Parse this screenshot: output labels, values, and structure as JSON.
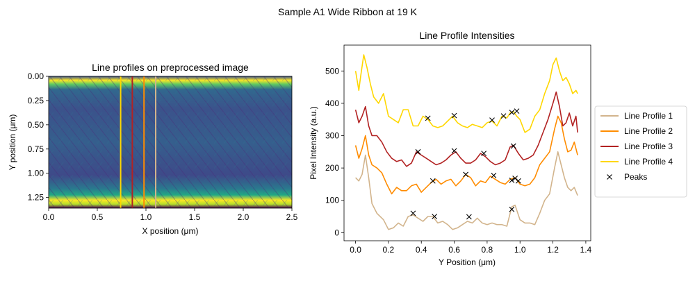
{
  "suptitle": "Sample A1 Wide Ribbon at 19 K",
  "colors": {
    "profile1": "#d2b48c",
    "profile2": "#ff8c00",
    "profile3": "#b22222",
    "profile4": "#ffd700",
    "peaks": "#000000",
    "viridis_dark": "#440154",
    "viridis_mid": "#21918c",
    "viridis_bright": "#fde725"
  },
  "chart_data": [
    {
      "type": "heatmap",
      "title": "Line profiles on preprocessed image",
      "xlabel": "X position (μm)",
      "ylabel": "Y position (μm)",
      "xlim": [
        0,
        2.5
      ],
      "ylim": [
        1.36,
        0
      ],
      "xticks": [
        "0.0",
        "0.5",
        "1.0",
        "1.5",
        "2.0",
        "2.5"
      ],
      "yticks": [
        "0.00",
        "0.25",
        "0.50",
        "0.75",
        "1.00",
        "1.25"
      ],
      "colormap": "viridis",
      "bright_bands": [
        {
          "y": 0.05,
          "description": "top edge"
        },
        {
          "y": 1.25,
          "description": "bottom edge"
        }
      ],
      "profile_lines": [
        {
          "name": "Line Profile 1",
          "x": 1.1,
          "color": "#d2b48c"
        },
        {
          "name": "Line Profile 2",
          "x": 0.98,
          "color": "#ff8c00"
        },
        {
          "name": "Line Profile 3",
          "x": 0.86,
          "color": "#b22222"
        },
        {
          "name": "Line Profile 4",
          "x": 0.74,
          "color": "#ffd700"
        }
      ]
    },
    {
      "type": "line",
      "title": "Line Profile Intensities",
      "xlabel": "Y Position (μm)",
      "ylabel": "Pixel Intensity (a.u.)",
      "xlim": [
        -0.07,
        1.43
      ],
      "ylim": [
        -25,
        580
      ],
      "xticks": [
        "0.0",
        "0.2",
        "0.4",
        "0.6",
        "0.8",
        "1.0",
        "1.2",
        "1.4"
      ],
      "yticks": [
        "0",
        "100",
        "200",
        "300",
        "400",
        "500"
      ],
      "legend_position": "right-outside",
      "series": [
        {
          "name": "Line Profile 1",
          "color": "#d2b48c",
          "points": [
            [
              0.0,
              170
            ],
            [
              0.02,
              160
            ],
            [
              0.04,
              180
            ],
            [
              0.06,
              240
            ],
            [
              0.08,
              170
            ],
            [
              0.1,
              90
            ],
            [
              0.13,
              60
            ],
            [
              0.17,
              40
            ],
            [
              0.2,
              10
            ],
            [
              0.23,
              15
            ],
            [
              0.26,
              30
            ],
            [
              0.29,
              20
            ],
            [
              0.32,
              50
            ],
            [
              0.35,
              55
            ],
            [
              0.38,
              45
            ],
            [
              0.41,
              35
            ],
            [
              0.44,
              50
            ],
            [
              0.47,
              50
            ],
            [
              0.5,
              30
            ],
            [
              0.53,
              35
            ],
            [
              0.56,
              25
            ],
            [
              0.59,
              10
            ],
            [
              0.62,
              15
            ],
            [
              0.65,
              25
            ],
            [
              0.68,
              35
            ],
            [
              0.71,
              30
            ],
            [
              0.74,
              45
            ],
            [
              0.77,
              30
            ],
            [
              0.8,
              25
            ],
            [
              0.83,
              30
            ],
            [
              0.86,
              25
            ],
            [
              0.89,
              25
            ],
            [
              0.92,
              20
            ],
            [
              0.95,
              80
            ],
            [
              0.97,
              85
            ],
            [
              1.0,
              40
            ],
            [
              1.03,
              30
            ],
            [
              1.06,
              30
            ],
            [
              1.09,
              25
            ],
            [
              1.12,
              60
            ],
            [
              1.15,
              100
            ],
            [
              1.18,
              120
            ],
            [
              1.21,
              200
            ],
            [
              1.23,
              250
            ],
            [
              1.25,
              210
            ],
            [
              1.27,
              170
            ],
            [
              1.29,
              140
            ],
            [
              1.31,
              130
            ],
            [
              1.33,
              140
            ],
            [
              1.35,
              115
            ]
          ]
        },
        {
          "name": "Line Profile 2",
          "color": "#ff8c00",
          "points": [
            [
              0.0,
              270
            ],
            [
              0.02,
              230
            ],
            [
              0.04,
              260
            ],
            [
              0.06,
              300
            ],
            [
              0.08,
              240
            ],
            [
              0.1,
              210
            ],
            [
              0.13,
              200
            ],
            [
              0.16,
              185
            ],
            [
              0.19,
              150
            ],
            [
              0.22,
              120
            ],
            [
              0.25,
              140
            ],
            [
              0.28,
              130
            ],
            [
              0.31,
              130
            ],
            [
              0.34,
              145
            ],
            [
              0.37,
              150
            ],
            [
              0.4,
              125
            ],
            [
              0.43,
              140
            ],
            [
              0.46,
              155
            ],
            [
              0.49,
              165
            ],
            [
              0.52,
              150
            ],
            [
              0.55,
              160
            ],
            [
              0.58,
              165
            ],
            [
              0.61,
              145
            ],
            [
              0.64,
              160
            ],
            [
              0.67,
              180
            ],
            [
              0.7,
              170
            ],
            [
              0.73,
              145
            ],
            [
              0.76,
              160
            ],
            [
              0.79,
              155
            ],
            [
              0.82,
              175
            ],
            [
              0.85,
              165
            ],
            [
              0.88,
              155
            ],
            [
              0.91,
              150
            ],
            [
              0.94,
              165
            ],
            [
              0.97,
              170
            ],
            [
              1.0,
              150
            ],
            [
              1.03,
              145
            ],
            [
              1.06,
              150
            ],
            [
              1.09,
              170
            ],
            [
              1.12,
              210
            ],
            [
              1.15,
              230
            ],
            [
              1.18,
              250
            ],
            [
              1.21,
              320
            ],
            [
              1.23,
              360
            ],
            [
              1.25,
              340
            ],
            [
              1.27,
              290
            ],
            [
              1.29,
              250
            ],
            [
              1.31,
              255
            ],
            [
              1.33,
              280
            ],
            [
              1.35,
              240
            ]
          ]
        },
        {
          "name": "Line Profile 3",
          "color": "#b22222",
          "points": [
            [
              0.0,
              380
            ],
            [
              0.02,
              340
            ],
            [
              0.04,
              360
            ],
            [
              0.06,
              390
            ],
            [
              0.08,
              330
            ],
            [
              0.1,
              300
            ],
            [
              0.13,
              300
            ],
            [
              0.16,
              280
            ],
            [
              0.19,
              250
            ],
            [
              0.22,
              230
            ],
            [
              0.25,
              220
            ],
            [
              0.28,
              225
            ],
            [
              0.31,
              205
            ],
            [
              0.34,
              215
            ],
            [
              0.37,
              250
            ],
            [
              0.4,
              240
            ],
            [
              0.43,
              230
            ],
            [
              0.46,
              220
            ],
            [
              0.49,
              210
            ],
            [
              0.52,
              215
            ],
            [
              0.55,
              225
            ],
            [
              0.58,
              240
            ],
            [
              0.61,
              250
            ],
            [
              0.64,
              230
            ],
            [
              0.67,
              215
            ],
            [
              0.7,
              215
            ],
            [
              0.73,
              225
            ],
            [
              0.76,
              245
            ],
            [
              0.79,
              235
            ],
            [
              0.82,
              220
            ],
            [
              0.85,
              210
            ],
            [
              0.88,
              215
            ],
            [
              0.91,
              225
            ],
            [
              0.94,
              265
            ],
            [
              0.96,
              270
            ],
            [
              0.99,
              245
            ],
            [
              1.02,
              225
            ],
            [
              1.05,
              230
            ],
            [
              1.08,
              240
            ],
            [
              1.11,
              270
            ],
            [
              1.14,
              310
            ],
            [
              1.17,
              350
            ],
            [
              1.2,
              400
            ],
            [
              1.22,
              435
            ],
            [
              1.24,
              390
            ],
            [
              1.26,
              330
            ],
            [
              1.28,
              340
            ],
            [
              1.3,
              370
            ],
            [
              1.32,
              330
            ],
            [
              1.34,
              360
            ],
            [
              1.35,
              310
            ]
          ]
        },
        {
          "name": "Line Profile 4",
          "color": "#ffd700",
          "points": [
            [
              0.0,
              500
            ],
            [
              0.02,
              440
            ],
            [
              0.03,
              480
            ],
            [
              0.05,
              550
            ],
            [
              0.07,
              510
            ],
            [
              0.09,
              460
            ],
            [
              0.11,
              420
            ],
            [
              0.14,
              400
            ],
            [
              0.17,
              430
            ],
            [
              0.2,
              360
            ],
            [
              0.23,
              350
            ],
            [
              0.26,
              340
            ],
            [
              0.29,
              380
            ],
            [
              0.32,
              380
            ],
            [
              0.35,
              330
            ],
            [
              0.38,
              330
            ],
            [
              0.41,
              360
            ],
            [
              0.44,
              350
            ],
            [
              0.47,
              330
            ],
            [
              0.5,
              325
            ],
            [
              0.53,
              330
            ],
            [
              0.56,
              345
            ],
            [
              0.59,
              360
            ],
            [
              0.62,
              340
            ],
            [
              0.65,
              330
            ],
            [
              0.68,
              325
            ],
            [
              0.71,
              335
            ],
            [
              0.74,
              330
            ],
            [
              0.77,
              325
            ],
            [
              0.8,
              340
            ],
            [
              0.83,
              345
            ],
            [
              0.86,
              330
            ],
            [
              0.89,
              360
            ],
            [
              0.92,
              355
            ],
            [
              0.94,
              370
            ],
            [
              0.96,
              375
            ],
            [
              0.98,
              360
            ],
            [
              1.0,
              350
            ],
            [
              1.03,
              310
            ],
            [
              1.06,
              320
            ],
            [
              1.09,
              360
            ],
            [
              1.12,
              380
            ],
            [
              1.15,
              430
            ],
            [
              1.18,
              470
            ],
            [
              1.2,
              520
            ],
            [
              1.22,
              540
            ],
            [
              1.24,
              500
            ],
            [
              1.26,
              470
            ],
            [
              1.28,
              480
            ],
            [
              1.3,
              460
            ],
            [
              1.32,
              430
            ],
            [
              1.34,
              440
            ],
            [
              1.35,
              430
            ]
          ]
        }
      ],
      "peaks": {
        "name": "Peaks",
        "marker": "x",
        "points": [
          [
            0.35,
            60
          ],
          [
            0.48,
            50
          ],
          [
            0.69,
            49
          ],
          [
            0.95,
            72
          ],
          [
            0.47,
            160
          ],
          [
            0.67,
            180
          ],
          [
            0.84,
            177
          ],
          [
            0.95,
            162
          ],
          [
            0.97,
            168
          ],
          [
            0.99,
            160
          ],
          [
            0.38,
            250
          ],
          [
            0.6,
            253
          ],
          [
            0.78,
            245
          ],
          [
            0.96,
            268
          ],
          [
            0.44,
            354
          ],
          [
            0.6,
            362
          ],
          [
            0.83,
            348
          ],
          [
            0.9,
            361
          ],
          [
            0.95,
            372
          ],
          [
            0.98,
            376
          ]
        ]
      }
    }
  ],
  "legend": {
    "items": [
      {
        "label": "Line Profile 1",
        "kind": "line",
        "color": "#d2b48c"
      },
      {
        "label": "Line Profile 2",
        "kind": "line",
        "color": "#ff8c00"
      },
      {
        "label": "Line Profile 3",
        "kind": "line",
        "color": "#b22222"
      },
      {
        "label": "Line Profile 4",
        "kind": "line",
        "color": "#ffd700"
      },
      {
        "label": "Peaks",
        "kind": "marker",
        "color": "#000000"
      }
    ]
  }
}
